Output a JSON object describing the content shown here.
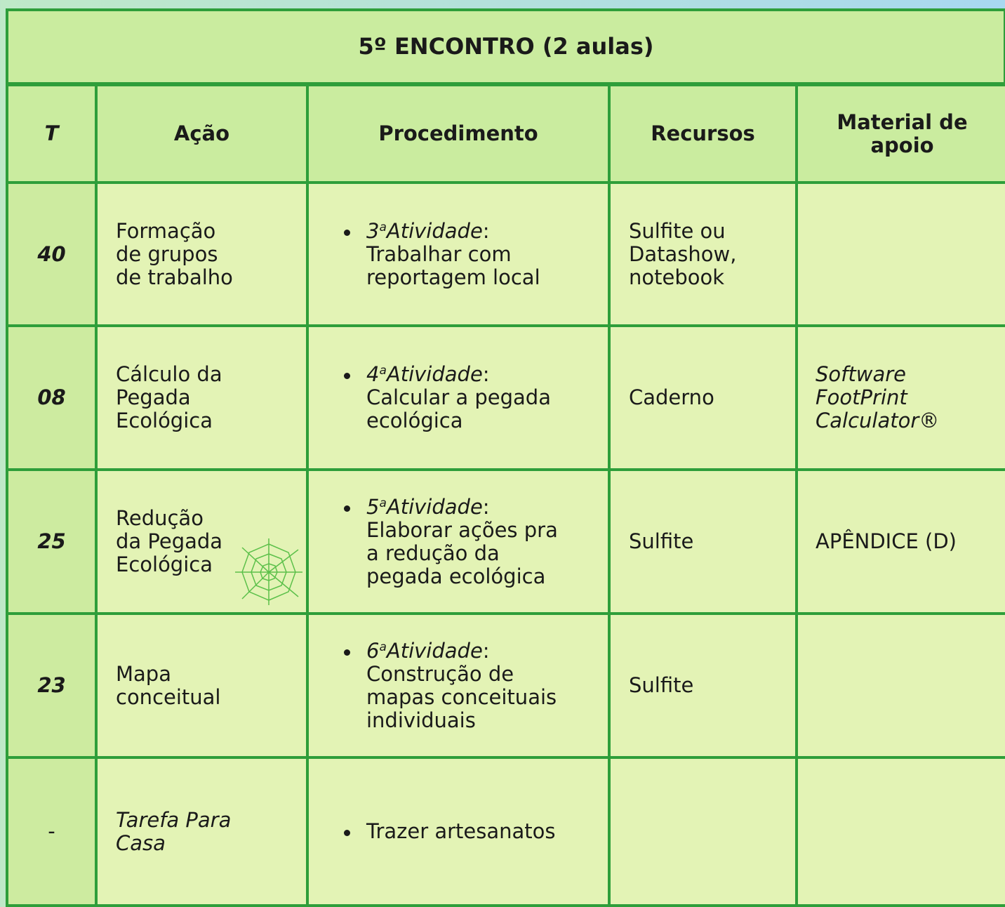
{
  "title": "5º ENCONTRO (2 aulas)",
  "headers": [
    "T",
    "Ação",
    "Procedimento",
    "Recursos",
    "Material de apoio"
  ],
  "rows": [
    {
      "t": "40",
      "acao": [
        "Formação",
        "de grupos",
        "de trabalho"
      ],
      "procedimento": {
        "ordinal": "3",
        "suffix": "a",
        "label": "Atividade",
        "colon": ":",
        "lines": [
          "Trabalhar com",
          "reportagem local"
        ]
      },
      "recursos": [
        "Sulfite ou",
        "Datashow,",
        "notebook"
      ],
      "material": []
    },
    {
      "t": "08",
      "acao": [
        "Cálculo da",
        "Pegada",
        "Ecológica"
      ],
      "procedimento": {
        "ordinal": "4",
        "suffix": "a",
        "label": "Atividade",
        "colon": ":",
        "lines": [
          "Calcular a pegada",
          "ecológica"
        ]
      },
      "recursos": [
        "Caderno"
      ],
      "material": [
        "Software",
        "FootPrint",
        "Calculator®"
      ],
      "material_italic": true
    },
    {
      "t": "25",
      "acao": [
        "Redução",
        "da Pegada",
        "Ecológica"
      ],
      "procedimento": {
        "ordinal": "5",
        "suffix": "a",
        "label": "Atividade",
        "colon": ":",
        "lines": [
          "Elaborar ações pra",
          "a redução da",
          "pegada ecológica"
        ]
      },
      "recursos": [
        "Sulfite"
      ],
      "material": [
        "APÊNDICE (D)"
      ]
    },
    {
      "t": "23",
      "acao": [
        "Mapa",
        "conceitual"
      ],
      "procedimento": {
        "ordinal": "6",
        "suffix": "a",
        "label": "Atividade",
        "colon": ":",
        "lines": [
          "Construção de",
          "mapas conceituais",
          "individuais"
        ]
      },
      "recursos": [
        "Sulfite"
      ],
      "material": []
    },
    {
      "t": "-",
      "acao": [
        "Tarefa Para",
        "Casa"
      ],
      "acao_italic": true,
      "procedimento": {
        "lines": [
          "Trazer artesanatos"
        ]
      },
      "recursos": [],
      "material": []
    }
  ]
}
